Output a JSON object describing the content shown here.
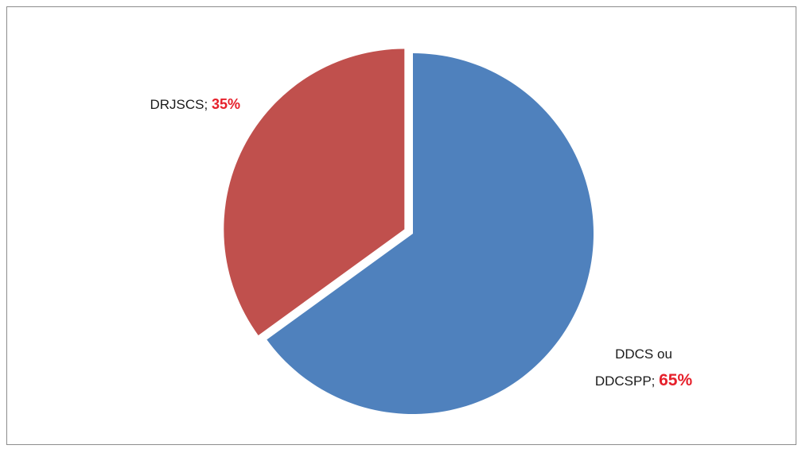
{
  "chart_data": {
    "type": "pie",
    "title": "",
    "legend": false,
    "start_angle_deg": 0,
    "direction": "clockwise",
    "slices": [
      {
        "label_lines": [
          "DDCS ou",
          "DDCSPP; "
        ],
        "value": 65,
        "value_label": "65%",
        "color": "#4f81bd",
        "value_color": "#e6202b",
        "exploded": false
      },
      {
        "label_lines": [
          "DRJSCS; "
        ],
        "value": 35,
        "value_label": "35%",
        "color": "#c0504d",
        "value_color": "#e6202b",
        "exploded": true
      }
    ]
  }
}
